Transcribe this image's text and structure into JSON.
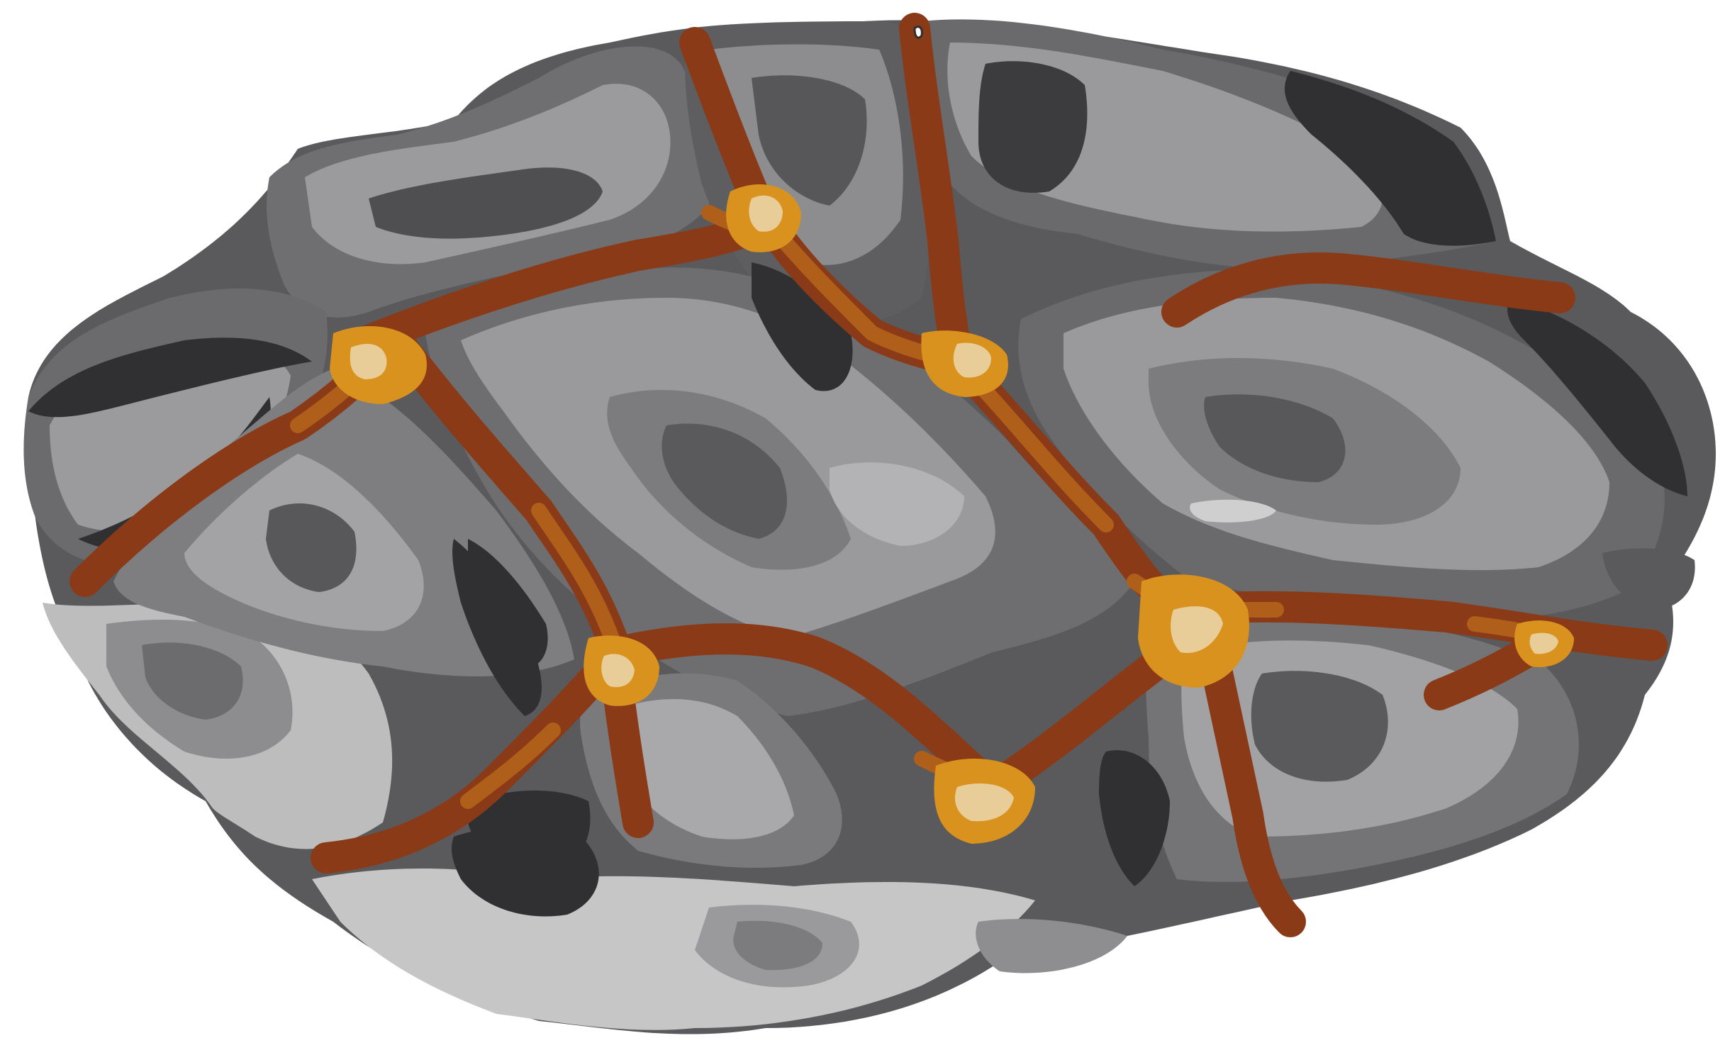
{
  "subject": "lava-rock",
  "colors": {
    "background": "#ffffff",
    "stone_light": "#c7c7c7",
    "stone_pale": "#b5b5b5",
    "stone_mid": "#8f8f8f",
    "stone_darkmid": "#6e6e70",
    "stone_dark": "#58585b",
    "stone_darkest": "#303033",
    "crack_deep": "#8a3a17",
    "crack_mid": "#b05f1a",
    "crack_glow": "#d8921d",
    "crack_hot": "#e9cd98"
  },
  "pieces": [
    "fragment-top-left",
    "fragment-top-center",
    "fragment-top-right",
    "fragment-left",
    "fragment-center",
    "fragment-right",
    "fragment-bottom-left",
    "fragment-bottom-center",
    "fragment-bottom-right"
  ],
  "crack_junctions": 8
}
